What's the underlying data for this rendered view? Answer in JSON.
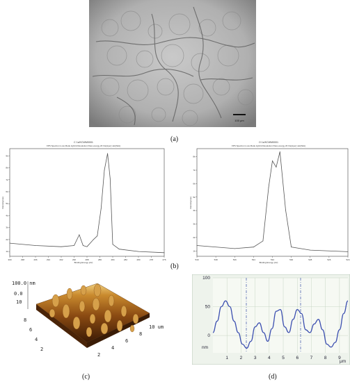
{
  "panels": {
    "a": {
      "label": "(a)",
      "scale_bar": "100 μm"
    },
    "b": {
      "label": "(b)",
      "left_spectrum": {
        "title": "C 1s/KCWM0001",
        "subtitle": "XPS Spectrum Low Mode Hybrid Resolution Pass energy 20 Iris(Aper) slot(Slot)",
        "xlabel": "Binding Energy (eV)",
        "ylabel": "Intensity(cps)",
        "x_ticks": [
          "300",
          "298",
          "296",
          "294",
          "292",
          "290",
          "288",
          "286",
          "284",
          "282",
          "280",
          "278",
          "276"
        ],
        "y_ticks": [
          "1k",
          "2k",
          "3k",
          "4k",
          "5k",
          "6k",
          "7k",
          "8k",
          "9k"
        ]
      },
      "right_spectrum": {
        "title": "O 1s/KCWM0001",
        "subtitle": "XPS Spectrum Low Mode Hybrid Resolution Pass energy 20 Iris(Aper) slot(Slot)",
        "xlabel": "Binding Energy (eV)",
        "ylabel": "Intensity(cps)",
        "x_ticks": [
          "540",
          "538",
          "536",
          "534",
          "532",
          "530",
          "528",
          "526",
          "524"
        ],
        "y_ticks": [
          "1k",
          "2k",
          "3k",
          "4k",
          "5k",
          "6k",
          "7k",
          "8k"
        ]
      }
    },
    "c": {
      "label": "(c)",
      "z_top": "100.0 nm",
      "z_mid": "0.0",
      "z_lbl": "10",
      "axis_right": "10 um",
      "left_ticks": [
        "8",
        "6",
        "4",
        "2"
      ],
      "bottom_ticks": [
        "2",
        "4",
        "6",
        "8"
      ]
    },
    "d": {
      "label": "(d)",
      "y_ticks": [
        "100",
        "50",
        "0"
      ],
      "y_unit": "nm",
      "x_ticks": [
        "1",
        "2",
        "3",
        "4",
        "5",
        "6",
        "7",
        "8",
        "9"
      ],
      "x_unit": "μm"
    }
  },
  "chart_data": [
    {
      "type": "line",
      "title": "C 1s/KCWM0001",
      "xlabel": "Binding Energy (eV)",
      "ylabel": "Intensity(cps)",
      "x": [
        300,
        296,
        292,
        290,
        289.2,
        288.6,
        288,
        287,
        286.4,
        285.8,
        285.3,
        284.8,
        284.4,
        284,
        283,
        280,
        276
      ],
      "values": [
        2.1,
        1.9,
        1.8,
        1.9,
        2.8,
        1.9,
        1.8,
        2.4,
        2.7,
        5.0,
        8.2,
        9.6,
        7.5,
        2.0,
        1.6,
        1.4,
        1.3
      ],
      "xlim": [
        300,
        276
      ],
      "ylim": [
        1,
        10
      ]
    },
    {
      "type": "line",
      "title": "O 1s/KCWM0001",
      "xlabel": "Binding Energy (eV)",
      "ylabel": "Intensity(cps)",
      "x": [
        540,
        536,
        534,
        533,
        532.4,
        532,
        531.6,
        531.2,
        530.6,
        530,
        528,
        524
      ],
      "values": [
        1.7,
        1.5,
        1.6,
        2.0,
        5.5,
        7.2,
        6.8,
        7.8,
        4.0,
        1.6,
        1.4,
        1.3
      ],
      "xlim": [
        540,
        524
      ],
      "ylim": [
        1,
        8
      ]
    },
    {
      "type": "line",
      "xlabel": "μm",
      "ylabel": "nm",
      "x": [
        0.0,
        0.3,
        0.6,
        0.9,
        1.2,
        1.5,
        1.8,
        2.1,
        2.4,
        2.7,
        3.0,
        3.3,
        3.6,
        3.9,
        4.2,
        4.5,
        4.8,
        5.1,
        5.4,
        5.7,
        6.0,
        6.3,
        6.6,
        6.9,
        7.2,
        7.5,
        7.8,
        8.1,
        8.4,
        8.7,
        9.0,
        9.3,
        9.6
      ],
      "values": [
        5,
        25,
        50,
        60,
        50,
        25,
        5,
        -15,
        -22,
        -10,
        15,
        22,
        5,
        -10,
        12,
        42,
        45,
        15,
        5,
        28,
        45,
        38,
        10,
        5,
        20,
        28,
        10,
        -15,
        -20,
        -12,
        10,
        38,
        60
      ],
      "xlim": [
        0,
        9.6
      ],
      "ylim": [
        -30,
        100
      ]
    }
  ]
}
